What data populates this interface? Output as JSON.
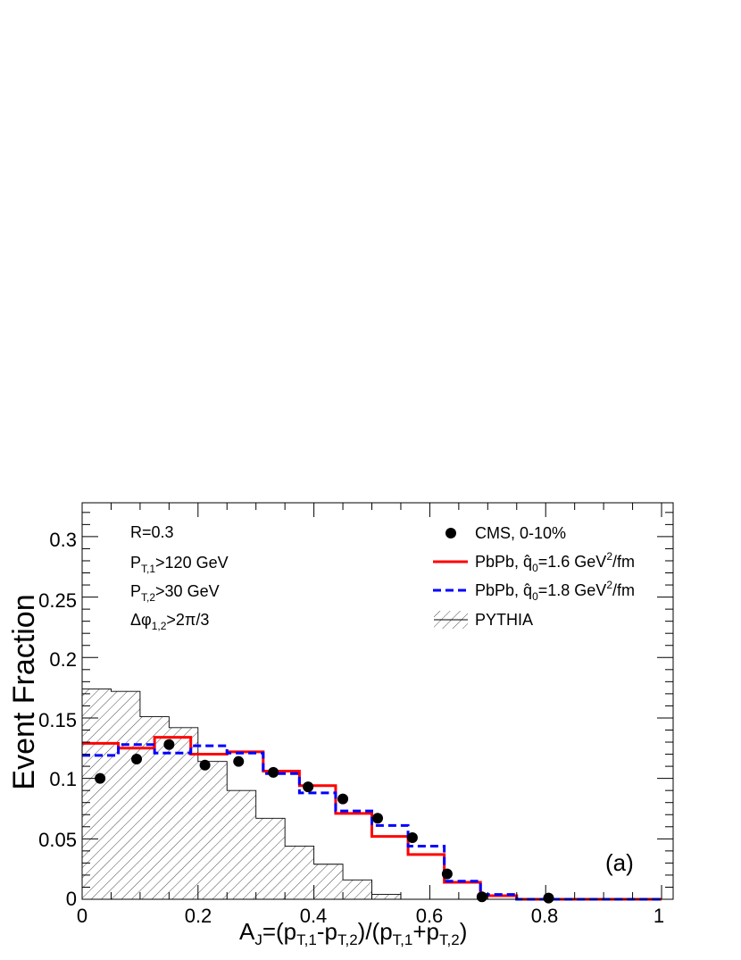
{
  "chart_data": {
    "type": "line",
    "title": "",
    "xlabel": "A_J=(p_T,1-p_T,2)/(p_T,1+p_T,2)",
    "ylabel": "Event Fraction",
    "xlim": [
      0,
      1.02
    ],
    "ylim": [
      0,
      0.328
    ],
    "x_ticks": [
      "0",
      "0.2",
      "0.4",
      "0.6",
      "0.8",
      "1"
    ],
    "y_ticks": [
      "0",
      "0.05",
      "0.1",
      "0.15",
      "0.2",
      "0.25",
      "0.3"
    ],
    "cuts": {
      "r": "R=0.3",
      "pt1_main": "P",
      "pt1_sub": "T,1",
      "pt1_rest": ">120 GeV",
      "pt2_main": "P",
      "pt2_sub": "T,2",
      "pt2_rest": ">30 GeV",
      "dphi_main": "Δφ",
      "dphi_sub": "1,2",
      "dphi_rest": ">2π/3"
    },
    "panel_label": "(a)",
    "bin_edges": [
      0,
      0.0625,
      0.125,
      0.1875,
      0.25,
      0.3125,
      0.375,
      0.4375,
      0.5,
      0.5625,
      0.625,
      0.6875,
      0.75,
      0.8125,
      0.875,
      0.9375,
      1.0
    ],
    "series": [
      {
        "name": "CMS, 0-10%",
        "kind": "points",
        "color": "#000000",
        "x": [
          0.031,
          0.094,
          0.15,
          0.212,
          0.27,
          0.33,
          0.39,
          0.45,
          0.51,
          0.57,
          0.63,
          0.69,
          0.805
        ],
        "y": [
          0.1,
          0.116,
          0.128,
          0.111,
          0.114,
          0.105,
          0.093,
          0.083,
          0.067,
          0.051,
          0.021,
          0.002,
          0.001
        ]
      },
      {
        "name": "PbPb, q̂0=1.6 GeV²/fm",
        "kind": "step",
        "color": "#ff0000",
        "values": [
          0.129,
          0.125,
          0.134,
          0.12,
          0.122,
          0.106,
          0.094,
          0.071,
          0.052,
          0.037,
          0.014,
          0.003,
          0.0,
          0.0,
          0.0,
          0.0
        ]
      },
      {
        "name": "PbPb, q̂0=1.8 GeV²/fm",
        "kind": "step-dashed",
        "color": "#0000ff",
        "values": [
          0.119,
          0.128,
          0.121,
          0.127,
          0.121,
          0.104,
          0.088,
          0.073,
          0.061,
          0.044,
          0.015,
          0.004,
          0.0,
          0.0,
          0.0,
          0.0
        ]
      },
      {
        "name": "PYTHIA",
        "kind": "hatched-histogram",
        "color": "#000000",
        "values": [
          0.174,
          0.172,
          0.151,
          0.142,
          0.114,
          0.09,
          0.067,
          0.044,
          0.029,
          0.016,
          0.004,
          0.0,
          0.0,
          0.0,
          0.0,
          0.0
        ],
        "bin_edges": [
          0,
          0.05,
          0.1,
          0.15,
          0.2,
          0.25,
          0.3,
          0.35,
          0.4,
          0.45,
          0.5,
          0.55,
          0.6,
          0.65,
          0.7,
          0.75,
          0.8
        ]
      }
    ],
    "legend": {
      "placement": "top-right",
      "cms": "CMS, 0-10%",
      "pbpb_prefix": "PbPb, ",
      "q_hat": "q̂",
      "q_sub": "0",
      "q1_val": "=1.6 GeV",
      "q2_val": "=1.8 GeV",
      "sup": "2",
      "unit": "/fm",
      "pythia": "PYTHIA"
    },
    "xlabel_parts": {
      "a": "A",
      "a_sub": "J",
      "p1": "=(p",
      "s1": "T,1",
      "p2": "-p",
      "s2": "T,2",
      "p3": ")/(p",
      "s3": "T,1",
      "p4": "+p",
      "s4": "T,2",
      "p5": ")"
    }
  }
}
